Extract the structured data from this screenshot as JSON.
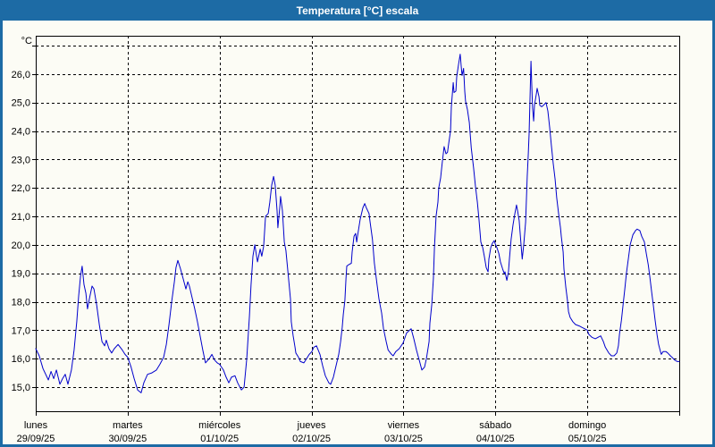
{
  "header": {
    "title": "Temperatura [°C] escala"
  },
  "colors": {
    "titlebar_bg": "#1d6ba5",
    "frame": "#1d6ba5",
    "background": "#fcfcf5",
    "line": "#0000cc",
    "grid": "#000000",
    "text": "#000000"
  },
  "chart_data": {
    "type": "line",
    "title": "Temperatura [°C] escala",
    "xlabel": "",
    "ylabel": "°C",
    "ylim": [
      14.2,
      27.3
    ],
    "yticks": [
      15,
      16,
      17,
      18,
      19,
      20,
      21,
      22,
      23,
      24,
      25,
      26
    ],
    "ytick_labels": [
      "15,0",
      "16,0",
      "17,0",
      "18,0",
      "19,0",
      "20,0",
      "21,0",
      "22,0",
      "23,0",
      "24,0",
      "25,0",
      "26,0"
    ],
    "y_top_gridline": 27,
    "grid": "dashed",
    "legend": "none",
    "x_axis_days": [
      {
        "day": "lunes",
        "date": "29/09/25"
      },
      {
        "day": "martes",
        "date": "30/09/25"
      },
      {
        "day": "miércoles",
        "date": "01/10/25"
      },
      {
        "day": "jueves",
        "date": "02/10/25"
      },
      {
        "day": "viernes",
        "date": "03/10/25"
      },
      {
        "day": "sábado",
        "date": "04/10/25"
      },
      {
        "day": "domingo",
        "date": "05/10/25"
      }
    ],
    "series": [
      {
        "name": "Temperatura [°C]",
        "color": "#0000cc",
        "x_unit": "hours from 29/09/25 00:00",
        "points": [
          [
            0,
            16.35
          ],
          [
            0.9,
            16.1
          ],
          [
            1.9,
            15.65
          ],
          [
            3.3,
            15.25
          ],
          [
            4,
            15.55
          ],
          [
            4.7,
            15.3
          ],
          [
            5.4,
            15.6
          ],
          [
            6.3,
            15.1
          ],
          [
            7,
            15.3
          ],
          [
            7.7,
            15.45
          ],
          [
            8.4,
            15.1
          ],
          [
            9.3,
            15.6
          ],
          [
            10,
            16.3
          ],
          [
            10.7,
            17.3
          ],
          [
            11.2,
            18.2
          ],
          [
            11.7,
            18.9
          ],
          [
            12.1,
            19.25
          ],
          [
            12.6,
            18.6
          ],
          [
            13.1,
            18.3
          ],
          [
            13.5,
            17.75
          ],
          [
            14,
            18.1
          ],
          [
            14.7,
            18.55
          ],
          [
            15.2,
            18.45
          ],
          [
            15.9,
            17.9
          ],
          [
            16.6,
            17.2
          ],
          [
            17.3,
            16.6
          ],
          [
            18,
            16.45
          ],
          [
            18.4,
            16.65
          ],
          [
            19.1,
            16.35
          ],
          [
            19.8,
            16.2
          ],
          [
            20.5,
            16.35
          ],
          [
            21.5,
            16.5
          ],
          [
            22.6,
            16.3
          ],
          [
            23.3,
            16.15
          ],
          [
            24,
            16.05
          ],
          [
            24.9,
            15.7
          ],
          [
            25.7,
            15.3
          ],
          [
            26.6,
            14.9
          ],
          [
            27.5,
            14.8
          ],
          [
            28.2,
            15.15
          ],
          [
            29.2,
            15.45
          ],
          [
            30.3,
            15.5
          ],
          [
            31.5,
            15.6
          ],
          [
            32.4,
            15.8
          ],
          [
            33.4,
            16.05
          ],
          [
            34.1,
            16.5
          ],
          [
            34.8,
            17.2
          ],
          [
            35.5,
            18
          ],
          [
            36.2,
            18.7
          ],
          [
            36.6,
            19.2
          ],
          [
            37.1,
            19.45
          ],
          [
            37.8,
            19.15
          ],
          [
            38.5,
            18.8
          ],
          [
            39.2,
            18.45
          ],
          [
            39.7,
            18.7
          ],
          [
            40.1,
            18.55
          ],
          [
            40.8,
            18.15
          ],
          [
            41.5,
            17.75
          ],
          [
            42.2,
            17.3
          ],
          [
            42.9,
            16.8
          ],
          [
            43.6,
            16.3
          ],
          [
            44.3,
            15.85
          ],
          [
            45.3,
            16
          ],
          [
            46,
            16.15
          ],
          [
            46.7,
            15.95
          ],
          [
            47.4,
            15.85
          ],
          [
            48,
            15.8
          ],
          [
            49,
            15.6
          ],
          [
            49.7,
            15.35
          ],
          [
            50.4,
            15.15
          ],
          [
            51.1,
            15.35
          ],
          [
            52,
            15.4
          ],
          [
            52.7,
            15.15
          ],
          [
            53.7,
            14.9
          ],
          [
            54.4,
            15
          ],
          [
            55.1,
            16
          ],
          [
            55.8,
            17.5
          ],
          [
            56.2,
            18.6
          ],
          [
            56.7,
            19.6
          ],
          [
            57.2,
            20
          ],
          [
            57.9,
            19.4
          ],
          [
            58.6,
            19.85
          ],
          [
            59,
            19.6
          ],
          [
            59.5,
            19.95
          ],
          [
            60,
            21
          ],
          [
            60.7,
            21.1
          ],
          [
            61.1,
            21.5
          ],
          [
            61.6,
            22.1
          ],
          [
            62.1,
            22.4
          ],
          [
            62.5,
            22.1
          ],
          [
            63,
            21.2
          ],
          [
            63.2,
            20.6
          ],
          [
            63.7,
            21.3
          ],
          [
            63.9,
            21.7
          ],
          [
            64.4,
            21.2
          ],
          [
            64.9,
            20.1
          ],
          [
            65.3,
            19.8
          ],
          [
            65.6,
            19.4
          ],
          [
            66,
            18.8
          ],
          [
            66.5,
            18.1
          ],
          [
            66.7,
            17.3
          ],
          [
            67.2,
            16.8
          ],
          [
            67.7,
            16.4
          ],
          [
            67.9,
            16.2
          ],
          [
            68.6,
            16.05
          ],
          [
            69.1,
            15.9
          ],
          [
            70,
            15.85
          ],
          [
            70.7,
            16
          ],
          [
            71.4,
            16.15
          ],
          [
            72.1,
            16.25
          ],
          [
            72.6,
            16.4
          ],
          [
            73.3,
            16.45
          ],
          [
            74.2,
            16.15
          ],
          [
            74.9,
            15.75
          ],
          [
            75.6,
            15.4
          ],
          [
            76.5,
            15.15
          ],
          [
            77,
            15.1
          ],
          [
            77.7,
            15.35
          ],
          [
            78.4,
            15.75
          ],
          [
            79.1,
            16.15
          ],
          [
            79.6,
            16.6
          ],
          [
            80,
            17.1
          ],
          [
            80.3,
            17.55
          ],
          [
            80.7,
            18.05
          ],
          [
            81,
            18.8
          ],
          [
            81.2,
            19.25
          ],
          [
            81.7,
            19.3
          ],
          [
            82.4,
            19.35
          ],
          [
            82.6,
            19.75
          ],
          [
            83.1,
            20.3
          ],
          [
            83.5,
            20.4
          ],
          [
            83.8,
            20.1
          ],
          [
            84,
            20.3
          ],
          [
            84.7,
            20.9
          ],
          [
            85.4,
            21.3
          ],
          [
            85.9,
            21.45
          ],
          [
            86.3,
            21.3
          ],
          [
            87,
            21.1
          ],
          [
            87.3,
            20.8
          ],
          [
            87.9,
            20.2
          ],
          [
            88.4,
            19.35
          ],
          [
            89.1,
            18.6
          ],
          [
            89.6,
            18.1
          ],
          [
            90.3,
            17.6
          ],
          [
            90.8,
            17.05
          ],
          [
            91.5,
            16.6
          ],
          [
            92,
            16.3
          ],
          [
            92.9,
            16.15
          ],
          [
            93.3,
            16.1
          ],
          [
            94,
            16.25
          ],
          [
            94.9,
            16.35
          ],
          [
            95.9,
            16.55
          ],
          [
            96.8,
            16.9
          ],
          [
            98,
            17.05
          ],
          [
            98.7,
            16.7
          ],
          [
            99.4,
            16.3
          ],
          [
            100.3,
            15.85
          ],
          [
            100.8,
            15.6
          ],
          [
            101.5,
            15.7
          ],
          [
            102,
            16
          ],
          [
            102.7,
            16.6
          ],
          [
            102.9,
            17.25
          ],
          [
            103.4,
            17.9
          ],
          [
            103.8,
            18.8
          ],
          [
            104.1,
            19.9
          ],
          [
            104.5,
            21
          ],
          [
            105,
            21.5
          ],
          [
            105.2,
            22
          ],
          [
            105.7,
            22.35
          ],
          [
            106.1,
            22.85
          ],
          [
            106.6,
            23.45
          ],
          [
            107.1,
            23.2
          ],
          [
            107.5,
            23.25
          ],
          [
            107.8,
            23.55
          ],
          [
            108.3,
            24
          ],
          [
            108.5,
            24.85
          ],
          [
            109,
            25.7
          ],
          [
            109.2,
            25.35
          ],
          [
            109.7,
            25.4
          ],
          [
            109.9,
            25.9
          ],
          [
            110.4,
            26.35
          ],
          [
            110.8,
            26.7
          ],
          [
            111.1,
            26.25
          ],
          [
            111.3,
            25.95
          ],
          [
            111.7,
            26.2
          ],
          [
            112,
            25.4
          ],
          [
            112.2,
            25.05
          ],
          [
            112.7,
            24.75
          ],
          [
            113.2,
            24.3
          ],
          [
            113.7,
            23.4
          ],
          [
            114.3,
            22.7
          ],
          [
            114.8,
            22.05
          ],
          [
            115.3,
            21.5
          ],
          [
            115.7,
            20.9
          ],
          [
            116.2,
            20.1
          ],
          [
            116.7,
            19.9
          ],
          [
            117.1,
            19.6
          ],
          [
            117.6,
            19.2
          ],
          [
            118.1,
            19.05
          ],
          [
            118.3,
            19.5
          ],
          [
            118.8,
            19.9
          ],
          [
            119.2,
            20.05
          ],
          [
            119.7,
            20.15
          ],
          [
            119.9,
            20.05
          ],
          [
            120.4,
            19.9
          ],
          [
            120.9,
            19.7
          ],
          [
            121.3,
            19.4
          ],
          [
            121.9,
            19.15
          ],
          [
            122.3,
            19
          ],
          [
            122.5,
            19.05
          ],
          [
            123,
            18.75
          ],
          [
            123.4,
            19.05
          ],
          [
            123.7,
            19.55
          ],
          [
            124.1,
            20.2
          ],
          [
            124.6,
            20.7
          ],
          [
            125.1,
            21.1
          ],
          [
            125.5,
            21.4
          ],
          [
            125.8,
            21.2
          ],
          [
            126.2,
            20.85
          ],
          [
            126.7,
            20
          ],
          [
            127,
            19.5
          ],
          [
            127.4,
            20
          ],
          [
            127.9,
            20.8
          ],
          [
            128.1,
            21.6
          ],
          [
            128.3,
            22.4
          ],
          [
            128.6,
            23.2
          ],
          [
            128.8,
            23.9
          ],
          [
            129,
            25
          ],
          [
            129.3,
            26.45
          ],
          [
            129.5,
            25.6
          ],
          [
            129.7,
            24.8
          ],
          [
            130,
            24.35
          ],
          [
            130.2,
            24.9
          ],
          [
            130.7,
            25.3
          ],
          [
            130.9,
            25.5
          ],
          [
            131.4,
            25.2
          ],
          [
            131.6,
            24.9
          ],
          [
            132.1,
            24.85
          ],
          [
            132.5,
            24.9
          ],
          [
            133.2,
            25
          ],
          [
            133.7,
            24.7
          ],
          [
            134.2,
            24.1
          ],
          [
            134.6,
            23.5
          ],
          [
            135.1,
            22.85
          ],
          [
            135.6,
            22.3
          ],
          [
            136,
            21.65
          ],
          [
            136.5,
            21.1
          ],
          [
            137,
            20.6
          ],
          [
            137.2,
            20.3
          ],
          [
            137.7,
            19.75
          ],
          [
            137.9,
            19.15
          ],
          [
            138.4,
            18.5
          ],
          [
            138.8,
            18.05
          ],
          [
            139.1,
            17.65
          ],
          [
            139.5,
            17.45
          ],
          [
            140.2,
            17.3
          ],
          [
            140.9,
            17.2
          ],
          [
            141.9,
            17.15
          ],
          [
            142.6,
            17.1
          ],
          [
            143.3,
            17.05
          ],
          [
            144,
            17
          ],
          [
            144.4,
            16.85
          ],
          [
            145.2,
            16.75
          ],
          [
            146.1,
            16.7
          ],
          [
            146.8,
            16.75
          ],
          [
            147.5,
            16.8
          ],
          [
            148.2,
            16.6
          ],
          [
            148.7,
            16.4
          ],
          [
            149.6,
            16.2
          ],
          [
            150.3,
            16.1
          ],
          [
            151,
            16.1
          ],
          [
            151.7,
            16.2
          ],
          [
            152.1,
            16.45
          ],
          [
            152.4,
            16.85
          ],
          [
            152.9,
            17.35
          ],
          [
            153.3,
            17.85
          ],
          [
            153.8,
            18.45
          ],
          [
            154.2,
            19
          ],
          [
            154.7,
            19.5
          ],
          [
            155.2,
            20
          ],
          [
            155.9,
            20.35
          ],
          [
            156.6,
            20.5
          ],
          [
            157,
            20.55
          ],
          [
            157.7,
            20.5
          ],
          [
            158.2,
            20.3
          ],
          [
            158.9,
            20.1
          ],
          [
            159.4,
            19.7
          ],
          [
            159.9,
            19.3
          ],
          [
            160.3,
            18.9
          ],
          [
            160.8,
            18.35
          ],
          [
            161.2,
            17.9
          ],
          [
            161.7,
            17.35
          ],
          [
            162.2,
            16.85
          ],
          [
            162.6,
            16.5
          ],
          [
            163.1,
            16.25
          ],
          [
            163.3,
            16.15
          ],
          [
            163.8,
            16.25
          ],
          [
            164.5,
            16.25
          ],
          [
            165,
            16.2
          ],
          [
            165.7,
            16.1
          ],
          [
            166.1,
            16.05
          ],
          [
            166.8,
            15.95
          ],
          [
            167.5,
            15.9
          ],
          [
            168,
            15.9
          ]
        ]
      }
    ]
  }
}
